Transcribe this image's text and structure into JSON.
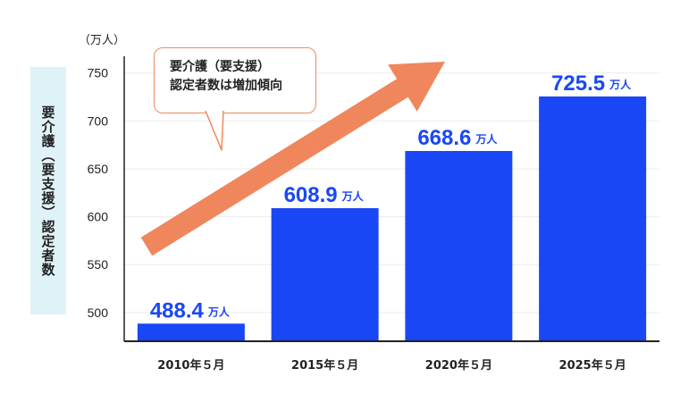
{
  "chart_data": {
    "type": "bar",
    "categories": [
      "2010年５月",
      "2015年５月",
      "2020年５月",
      "2025年５月"
    ],
    "values": [
      488.4,
      608.9,
      668.6,
      725.5
    ],
    "value_labels": [
      "488.4",
      "608.9",
      "668.6",
      "725.5"
    ],
    "value_unit": "万人",
    "ylabel": "要介護（要支援）認定者数",
    "yunit": "（万人）",
    "yticks": [
      500,
      550,
      600,
      650,
      700,
      750
    ],
    "ylim": [
      470,
      760
    ],
    "grid": true,
    "bar_color": "#1a47f5",
    "arrow_color": "#f0865c",
    "annotation": {
      "line1": "要介護（要支援）",
      "line2": "認定者数は増加傾向"
    }
  }
}
